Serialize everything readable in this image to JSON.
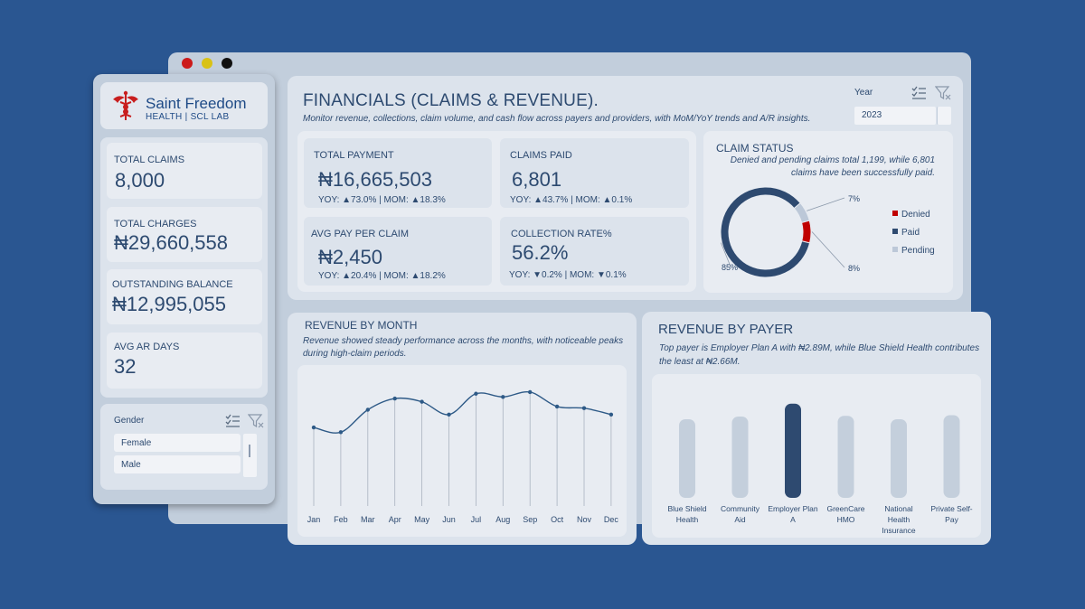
{
  "window": {
    "dots": [
      "#cc1b1b",
      "#d9c216",
      "#111111"
    ]
  },
  "brand": {
    "name": "Saint Freedom",
    "subtitle": "HEALTH | SCL LAB",
    "icon": "caduceus-icon",
    "icon_color": "#c81e1e"
  },
  "sidebar_kpis": [
    {
      "label": "TOTAL CLAIMS",
      "value": "8,000"
    },
    {
      "label": "TOTAL CHARGES",
      "value": "₦29,660,558"
    },
    {
      "label": "OUTSTANDING BALANCE",
      "value": "₦12,995,055"
    },
    {
      "label": "AVG AR DAYS",
      "value": "32"
    }
  ],
  "gender_slicer": {
    "title": "Gender",
    "items": [
      "Female",
      "Male"
    ],
    "icons": [
      "multi-select-icon",
      "clear-filter-icon"
    ]
  },
  "header": {
    "title": "FINANCIALS (CLAIMS & REVENUE).",
    "subtitle": "Monitor revenue, collections, claim volume, and cash flow across payers and providers, with MoM/YoY trends and A/R insights."
  },
  "year_slicer": {
    "label": "Year",
    "value": "2023",
    "icons": [
      "multi-select-icon",
      "clear-filter-icon"
    ]
  },
  "metrics": [
    {
      "label": "TOTAL PAYMENT",
      "value": "₦16,665,503",
      "trend": "YOY: ▲73.0% | MOM: ▲18.3%"
    },
    {
      "label": "CLAIMS PAID",
      "value": "6,801",
      "trend": "YOY: ▲43.7% | MOM: ▲0.1%"
    },
    {
      "label": "AVG PAY PER CLAIM",
      "value": "₦2,450",
      "trend": "YOY: ▲20.4% | MOM: ▲18.2%"
    },
    {
      "label": "COLLECTION RATE%",
      "value": "56.2%",
      "trend": "YOY: ▼0.2% | MOM: ▼0.1%"
    }
  ],
  "claim_status": {
    "title": "CLAIM STATUS",
    "subtitle": "Denied and pending claims total 1,199, while 6,801 claims have been successfully paid."
  },
  "revenue_by_month": {
    "title": "REVENUE BY MONTH",
    "subtitle": "Revenue showed steady performance across the months, with noticeable peaks during high-claim periods."
  },
  "revenue_by_payer": {
    "title": "REVENUE BY PAYER",
    "subtitle": "Top payer is Employer Plan A with ₦2.89M, while Blue Shield Health contributes the least at ₦2.66M."
  },
  "chart_data": [
    {
      "type": "pie",
      "title": "CLAIM STATUS",
      "donut": true,
      "categories": [
        "Denied",
        "Paid",
        "Pending"
      ],
      "values": [
        8,
        85,
        7
      ],
      "labels": [
        "8%",
        "85%",
        "7%"
      ],
      "colors": [
        "#c00000",
        "#2e4a70",
        "#bcc8d8"
      ],
      "legend": "right"
    },
    {
      "type": "line",
      "title": "REVENUE BY MONTH",
      "categories": [
        "Jan",
        "Feb",
        "Mar",
        "Apr",
        "May",
        "Jun",
        "Jul",
        "Aug",
        "Sep",
        "Oct",
        "Nov",
        "Dec"
      ],
      "values": [
        1.34,
        1.31,
        1.45,
        1.52,
        1.5,
        1.42,
        1.55,
        1.53,
        1.56,
        1.47,
        1.46,
        1.42
      ],
      "ylim": [
        0.85,
        1.65
      ],
      "unit": "₦M (approx.)",
      "color": "#2e5a87",
      "drop_lines": true
    },
    {
      "type": "bar",
      "title": "REVENUE BY PAYER",
      "categories": [
        "Blue Shield Health",
        "Community Aid",
        "Employer Plan A",
        "GreenCare HMO",
        "National Health Insurance",
        "Private Self-Pay"
      ],
      "category_lines": [
        [
          "Blue Shield",
          "Health"
        ],
        [
          "Community",
          "Aid"
        ],
        [
          "Employer Plan",
          "A"
        ],
        [
          "GreenCare",
          "HMO"
        ],
        [
          "National",
          "Health",
          "Insurance"
        ],
        [
          "Private Self-",
          "Pay"
        ]
      ],
      "values": [
        2.66,
        2.7,
        2.89,
        2.71,
        2.66,
        2.72
      ],
      "ylim": [
        1.5,
        2.9
      ],
      "unit": "₦M",
      "colors": [
        "#c4cfdc",
        "#c4cfdc",
        "#2e4a70",
        "#c4cfdc",
        "#c4cfdc",
        "#c4cfdc"
      ]
    }
  ]
}
